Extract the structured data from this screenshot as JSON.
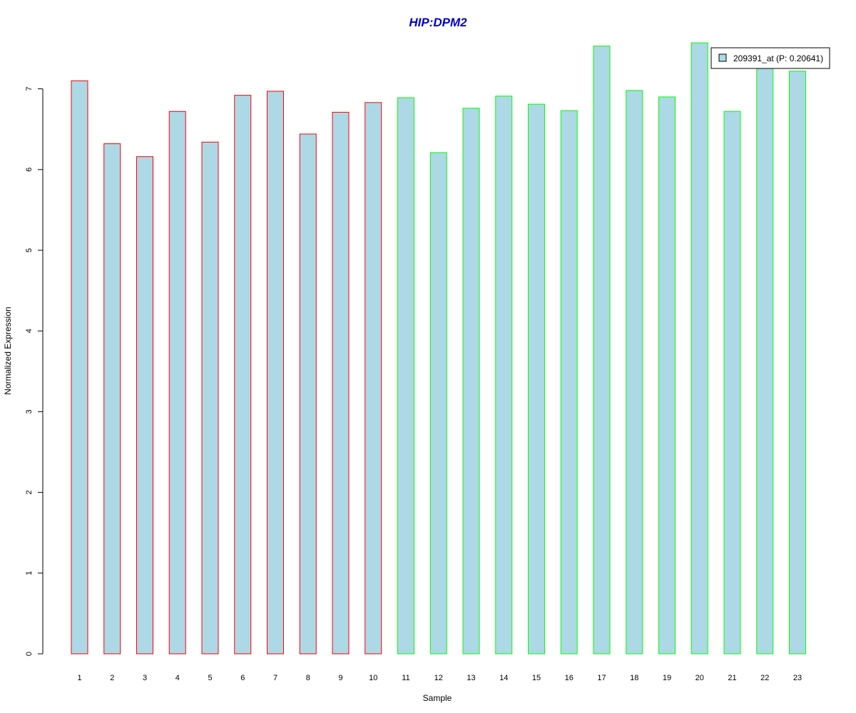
{
  "chart_data": {
    "type": "bar",
    "title": "HIP:DPM2",
    "xlabel": "Sample",
    "ylabel": "Normalized Expression",
    "categories": [
      "1",
      "2",
      "3",
      "4",
      "5",
      "6",
      "7",
      "8",
      "9",
      "10",
      "11",
      "12",
      "13",
      "14",
      "15",
      "16",
      "17",
      "18",
      "19",
      "20",
      "21",
      "22",
      "23"
    ],
    "values": [
      7.1,
      6.32,
      6.16,
      6.72,
      6.34,
      6.92,
      6.97,
      6.44,
      6.71,
      6.83,
      6.89,
      6.21,
      6.76,
      6.91,
      6.81,
      6.73,
      7.53,
      6.98,
      6.9,
      7.57,
      6.72,
      7.27,
      7.22
    ],
    "ylim": [
      0,
      7.6
    ],
    "yticks": [
      0,
      1,
      2,
      3,
      4,
      5,
      6,
      7
    ],
    "legend": {
      "label": "209391_at (P: 0.20641)",
      "placement": "top-right"
    },
    "colors": {
      "title": "#0000cc",
      "bar_fill": "#add8e6",
      "group1_border": "#ff0000",
      "group2_border": "#00ff00"
    },
    "group1_count": 10
  }
}
